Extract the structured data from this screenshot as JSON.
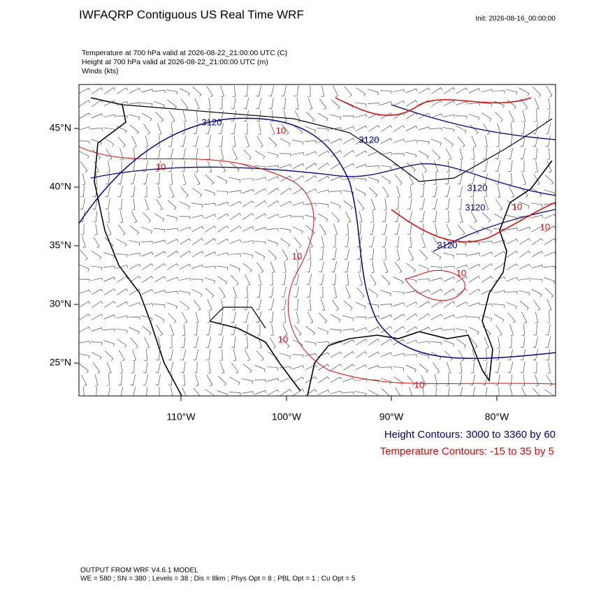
{
  "header": {
    "title": "IWFAQRP Contiguous US Real Time WRF",
    "init": "Init: 2026-08-16_00:00:00"
  },
  "subtitles": [
    "Temperature at 700 hPa valid at 2026-08-22_21:00:00 UTC   (C)",
    "Height at 700 hPa valid at 2026-08-22_21:00:00 UTC   (m)",
    "Winds   (kts)"
  ],
  "map": {
    "lat_labels": [
      "45°N",
      "40°N",
      "35°N",
      "30°N",
      "25°N"
    ],
    "lon_labels": [
      "110°W",
      "100°W",
      "90°W",
      "80°W"
    ],
    "height_contour_labels": [
      "3120",
      "3120",
      "3120",
      "3120",
      "3120"
    ],
    "temperature_contour_labels": [
      "10",
      "10",
      "10",
      "10",
      "10",
      "10",
      "10",
      "10"
    ]
  },
  "legend": {
    "height": "Height Contours: 3000 to 3360 by 60",
    "temperature": "Temperature Contours: -15 to 35 by 5"
  },
  "footer": {
    "model": "OUTPUT FROM WRF V4.6.1 MODEL",
    "settings": "WE = 580 ; SN = 380 ; Levels = 38 ; Dis = 8km ; Phys Opt = 8 ; PBL Opt = 1 ; Cu Opt = 5"
  }
}
